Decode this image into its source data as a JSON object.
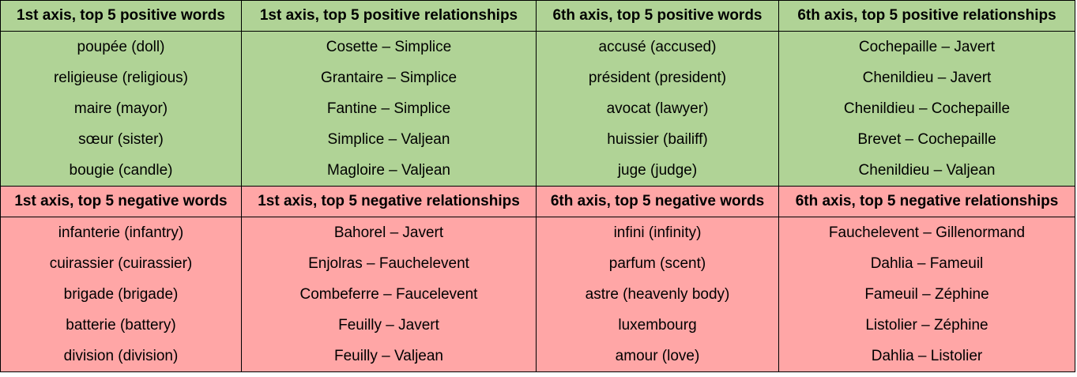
{
  "colors": {
    "positive_background": "#b0d396",
    "negative_background": "#ffa6a6",
    "border": "#000000"
  },
  "positive": {
    "headers": [
      "1st axis, top 5 positive words",
      "1st axis, top 5 positive relationships",
      "6th axis, top 5 positive words",
      "6th axis, top 5 positive relationships"
    ],
    "rows": [
      [
        "poupée (doll)",
        "Cosette – Simplice",
        "accusé (accused)",
        "Cochepaille – Javert"
      ],
      [
        "religieuse (religious)",
        "Grantaire – Simplice",
        "président (president)",
        "Chenildieu – Javert"
      ],
      [
        "maire (mayor)",
        "Fantine – Simplice",
        "avocat (lawyer)",
        "Chenildieu – Cochepaille"
      ],
      [
        "sœur (sister)",
        "Simplice – Valjean",
        "huissier (bailiff)",
        "Brevet – Cochepaille"
      ],
      [
        "bougie (candle)",
        "Magloire – Valjean",
        "juge (judge)",
        "Chenildieu – Valjean"
      ]
    ]
  },
  "negative": {
    "headers": [
      "1st axis, top 5 negative words",
      "1st axis, top 5 negative relationships",
      "6th axis, top 5 negative words",
      "6th axis, top 5 negative relationships"
    ],
    "rows": [
      [
        "infanterie (infantry)",
        "Bahorel – Javert",
        "infini (infinity)",
        "Fauchelevent – Gillenormand"
      ],
      [
        "cuirassier (cuirassier)",
        "Enjolras – Fauchelevent",
        "parfum (scent)",
        "Dahlia – Fameuil"
      ],
      [
        "brigade (brigade)",
        "Combeferre – Faucelevent",
        "astre (heavenly body)",
        "Fameuil – Zéphine"
      ],
      [
        "batterie (battery)",
        "Feuilly – Javert",
        "luxembourg",
        "Listolier – Zéphine"
      ],
      [
        "division (division)",
        "Feuilly – Valjean",
        "amour (love)",
        "Dahlia – Listolier"
      ]
    ]
  }
}
